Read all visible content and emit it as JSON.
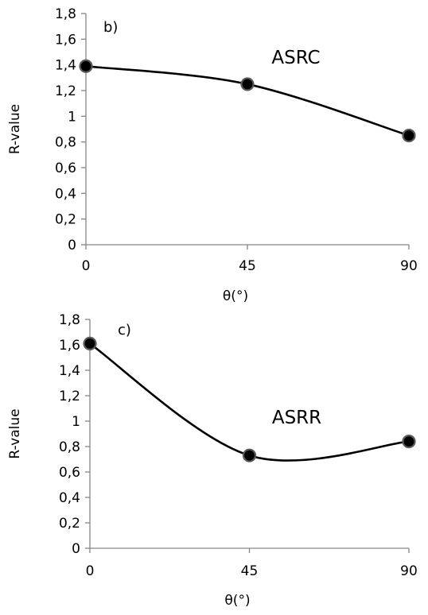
{
  "chart_data": [
    {
      "type": "line",
      "panel_label": "b)",
      "series_label": "ASRC",
      "xlabel": "θ(°)",
      "ylabel": "R-value",
      "x": [
        0,
        45,
        90
      ],
      "x_tick_labels": [
        "0",
        "45",
        "90"
      ],
      "series": [
        {
          "name": "ASRC",
          "values": [
            1.39,
            1.25,
            0.85
          ]
        }
      ],
      "ylim": [
        0,
        1.8
      ],
      "y_tick_labels": [
        "0",
        "0,2",
        "0,4",
        "0,6",
        "0,8",
        "1",
        "1,2",
        "1,4",
        "1,6",
        "1,8"
      ],
      "smooth": true,
      "grid": false,
      "colors": {
        "line": "#000000",
        "marker_fill": "#000000",
        "marker_edge": "#595959",
        "axis": "#868686"
      }
    },
    {
      "type": "line",
      "panel_label": "c)",
      "series_label": "ASRR",
      "xlabel": "θ(°)",
      "ylabel": "R-value",
      "x": [
        0,
        45,
        90
      ],
      "x_tick_labels": [
        "0",
        "45",
        "90"
      ],
      "series": [
        {
          "name": "ASRR",
          "values": [
            1.61,
            0.73,
            0.84
          ]
        }
      ],
      "ylim": [
        0,
        1.8
      ],
      "y_tick_labels": [
        "0",
        "0,2",
        "0,4",
        "0,6",
        "0,8",
        "1",
        "1,2",
        "1,4",
        "1,6",
        "1,8"
      ],
      "smooth": true,
      "grid": false,
      "colors": {
        "line": "#000000",
        "marker_fill": "#000000",
        "marker_edge": "#595959",
        "axis": "#868686"
      }
    }
  ]
}
